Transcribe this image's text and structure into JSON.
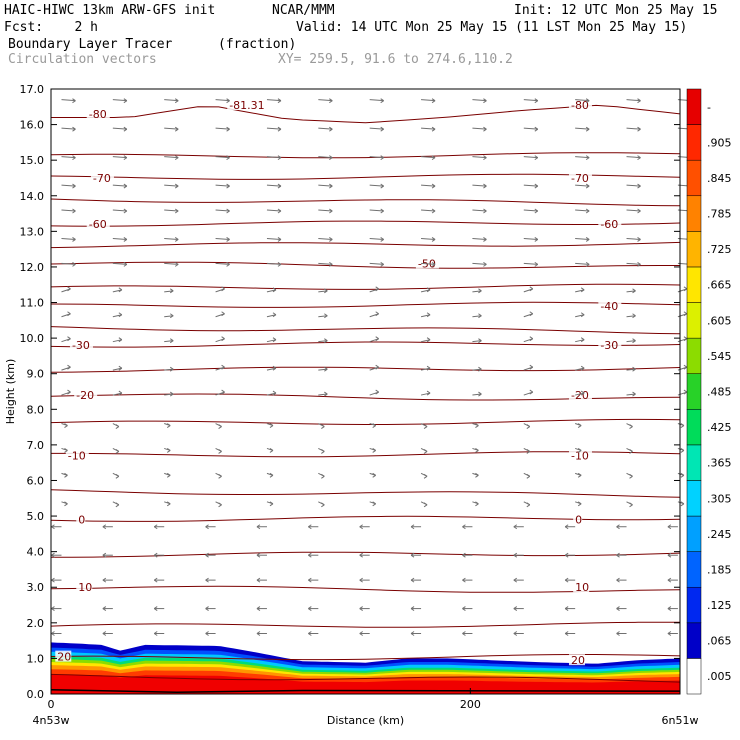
{
  "header": {
    "model": "HAIC-HIWC 13km ARW-GFS init",
    "org": "NCAR/MMM",
    "init": "Init: 12 UTC Mon 25 May 15",
    "fcst": "Fcst:    2 h",
    "valid": "Valid: 14 UTC Mon 25 May 15 (11 LST Mon 25 May 15)",
    "field": "Boundary Layer Tracer",
    "units": "(fraction)",
    "vectors": "Circulation vectors",
    "xy": "XY= 259.5, 91.6 to 274.6,110.2"
  },
  "chart_data": {
    "type": "heatmap",
    "ylabel": "Height (km)",
    "xlabel": "Distance (km)",
    "ylim": [
      0,
      17
    ],
    "xlim": [
      0,
      300
    ],
    "y_ticks": [
      "0.0",
      "1.0",
      "2.0",
      "3.0",
      "4.0",
      "5.0",
      "6.0",
      "7.0",
      "8.0",
      "9.0",
      "10.0",
      "11.0",
      "12.0",
      "13.0",
      "14.0",
      "15.0",
      "16.0",
      "17.0"
    ],
    "x_ticks": [
      {
        "value": 0,
        "label": "0"
      },
      {
        "value": 200,
        "label": "200"
      }
    ],
    "left_endpoint": "4n53w",
    "right_endpoint": "6n51w",
    "colorbar_labels": [
      ".005",
      ".065",
      ".125",
      ".185",
      ".245",
      ".305",
      ".365",
      ".425",
      ".485",
      ".545",
      ".605",
      ".665",
      ".725",
      ".785",
      ".845",
      ".905",
      "-"
    ],
    "colorbar_colors": [
      "#ffffff",
      "#0000c8",
      "#0028f0",
      "#0064ff",
      "#00a0ff",
      "#00d2ff",
      "#00e6b4",
      "#00dc5a",
      "#28d228",
      "#8cdc00",
      "#dcf000",
      "#ffe600",
      "#ffb400",
      "#ff8200",
      "#ff5000",
      "#ff2800",
      "#e60000"
    ],
    "tracer_top": [
      [
        0,
        1.45
      ],
      [
        12,
        1.42
      ],
      [
        24,
        1.38
      ],
      [
        33,
        1.22
      ],
      [
        45,
        1.38
      ],
      [
        80,
        1.35
      ],
      [
        95,
        1.2
      ],
      [
        120,
        0.92
      ],
      [
        150,
        0.88
      ],
      [
        170,
        1.0
      ],
      [
        190,
        1.0
      ],
      [
        230,
        0.9
      ],
      [
        260,
        0.85
      ],
      [
        280,
        0.95
      ],
      [
        300,
        1.0
      ]
    ],
    "contours": [
      {
        "value": -81.31,
        "label": "-81.31",
        "heights": [
          16.2,
          16.2,
          16.55,
          16.15,
          16.05,
          16.2,
          16.4,
          16.55,
          16.3
        ]
      },
      {
        "value": -80,
        "label": "-80"
      },
      {
        "value": -70,
        "label": "-70"
      },
      {
        "value": -60,
        "label": "-60"
      },
      {
        "value": -50,
        "label": "-50"
      },
      {
        "value": -40,
        "label": "-40"
      },
      {
        "value": -30,
        "label": "-30"
      },
      {
        "value": -20,
        "label": "-20"
      },
      {
        "value": -10,
        "label": "-10"
      },
      {
        "value": 0,
        "label": "0"
      },
      {
        "value": 10,
        "label": "10"
      },
      {
        "value": 20,
        "label": "20"
      }
    ],
    "contour_levels_km": [
      16.2,
      15.1,
      14.5,
      13.9,
      13.2,
      12.6,
      12.1,
      11.4,
      10.9,
      10.3,
      9.8,
      9.1,
      8.4,
      7.6,
      6.7,
      5.7,
      4.9,
      3.9,
      3.0,
      1.9,
      1.0,
      0.5
    ],
    "contour_labels": [
      {
        "label": "-81.31",
        "x": 85,
        "y": 16.55
      },
      {
        "label": "-80",
        "x": 18,
        "y": 16.3
      },
      {
        "label": "-80",
        "x": 248,
        "y": 16.55
      },
      {
        "label": "-70",
        "x": 20,
        "y": 14.5
      },
      {
        "label": "-70",
        "x": 248,
        "y": 14.5
      },
      {
        "label": "-60",
        "x": 18,
        "y": 13.2
      },
      {
        "label": "-60",
        "x": 262,
        "y": 13.2
      },
      {
        "label": "-50",
        "x": 175,
        "y": 12.1
      },
      {
        "label": "-40",
        "x": 262,
        "y": 10.9
      },
      {
        "label": "-30",
        "x": 10,
        "y": 9.8
      },
      {
        "label": "-30",
        "x": 262,
        "y": 9.8
      },
      {
        "label": "-20",
        "x": 12,
        "y": 8.4
      },
      {
        "label": "-20",
        "x": 248,
        "y": 8.4
      },
      {
        "label": "-10",
        "x": 8,
        "y": 6.7
      },
      {
        "label": "-10",
        "x": 248,
        "y": 6.7
      },
      {
        "label": "0",
        "x": 13,
        "y": 4.9
      },
      {
        "label": "0",
        "x": 250,
        "y": 4.9
      },
      {
        "label": "10",
        "x": 13,
        "y": 3.0
      },
      {
        "label": "10",
        "x": 250,
        "y": 3.0
      },
      {
        "label": "20",
        "x": 3,
        "y": 1.05
      },
      {
        "label": "20",
        "x": 248,
        "y": 0.95
      }
    ],
    "vector_rows_km": [
      16.7,
      15.9,
      15.1,
      14.3,
      13.6,
      12.8,
      12.1,
      11.3,
      10.6,
      9.9,
      9.1,
      8.4,
      7.6,
      6.9,
      6.2,
      5.4,
      4.7,
      3.9,
      3.2,
      2.4,
      1.7
    ]
  }
}
